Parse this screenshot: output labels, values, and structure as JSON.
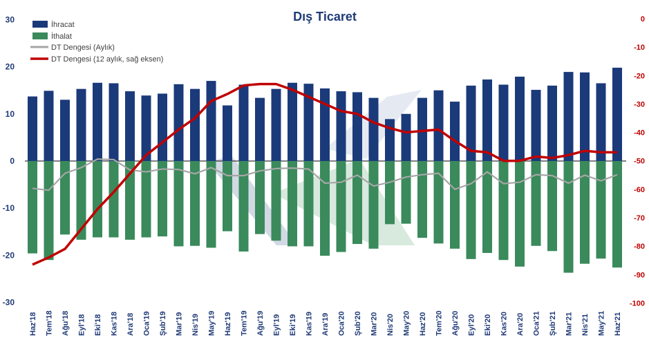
{
  "chart_data": {
    "type": "bar",
    "title": "Dış Ticaret",
    "colors": {
      "export": "#1B3A7A",
      "import": "#3A8A5C",
      "monthly_balance": "#A6A6A6",
      "annual_balance": "#C00000",
      "left_axis": "#1F3A77",
      "right_axis": "#C00000"
    },
    "categories": [
      "Haz'18",
      "Tem'18",
      "Ağu'18",
      "Eyl'18",
      "Eki'18",
      "Kas'18",
      "Ara'18",
      "Oca'19",
      "Şub'19",
      "Mar'19",
      "Nis'19",
      "May'19",
      "Haz'19",
      "Tem'19",
      "Ağu'19",
      "Eyl'19",
      "Eki'19",
      "Kas'19",
      "Ara'19",
      "Oca'20",
      "Şub'20",
      "Mar'20",
      "Nis'20",
      "May'20",
      "Haz'20",
      "Tem'20",
      "Ağu'20",
      "Eyl'20",
      "Eki'20",
      "Kas'20",
      "Ara'20",
      "Oca'21",
      "Şub'21",
      "Mar'21",
      "Nis'21",
      "May'21",
      "Haz'21"
    ],
    "left_axis": {
      "ylim": [
        -30,
        30
      ],
      "ticks": [
        "30",
        "20",
        "10",
        "0",
        "-10",
        "-20",
        "-30"
      ],
      "tick_values": [
        30,
        20,
        10,
        0,
        -10,
        -20,
        -30
      ]
    },
    "right_axis": {
      "ylim": [
        -100,
        0
      ],
      "ticks": [
        "0",
        "-10",
        "-20",
        "-30",
        "-40",
        "-50",
        "-60",
        "-70",
        "-80",
        "-90",
        "-100"
      ],
      "tick_values": [
        0,
        -10,
        -20,
        -30,
        -40,
        -50,
        -60,
        -70,
        -80,
        -90,
        -100
      ]
    },
    "legend": {
      "placement": "top-left"
    },
    "series": [
      {
        "name": "İhracat",
        "kind": "bar",
        "axis": "left",
        "values": [
          13.7,
          14.9,
          13.0,
          15.3,
          16.6,
          16.5,
          14.8,
          13.9,
          14.3,
          16.3,
          15.3,
          17.0,
          11.8,
          16.2,
          13.4,
          15.3,
          16.6,
          16.4,
          15.4,
          14.8,
          14.6,
          13.4,
          8.9,
          10.0,
          13.4,
          15.0,
          12.6,
          16.0,
          17.3,
          16.2,
          17.9,
          15.1,
          16.0,
          18.9,
          18.8,
          16.5,
          19.8
        ]
      },
      {
        "name": "İthalat",
        "kind": "bar",
        "axis": "left",
        "values": [
          -19.6,
          -21.0,
          -15.6,
          -16.7,
          -16.2,
          -16.2,
          -16.7,
          -16.2,
          -16.0,
          -18.1,
          -18.0,
          -18.4,
          -14.9,
          -19.2,
          -15.5,
          -16.9,
          -18.1,
          -18.1,
          -20.1,
          -19.3,
          -17.6,
          -18.6,
          -13.4,
          -13.3,
          -16.3,
          -17.5,
          -18.6,
          -20.8,
          -19.5,
          -21.0,
          -22.4,
          -18.0,
          -19.1,
          -23.7,
          -21.8,
          -20.7,
          -22.6
        ]
      },
      {
        "name": "DT Dengesi (Aylık)",
        "kind": "line",
        "axis": "left",
        "values": [
          -5.8,
          -6.2,
          -2.6,
          -1.4,
          0.4,
          0.3,
          -1.9,
          -2.3,
          -1.7,
          -1.8,
          -2.7,
          -1.4,
          -3.1,
          -3.1,
          -2.1,
          -1.6,
          -1.5,
          -1.7,
          -4.7,
          -4.5,
          -3.0,
          -5.3,
          -4.5,
          -3.4,
          -2.9,
          -2.6,
          -6.0,
          -4.8,
          -2.3,
          -4.8,
          -4.5,
          -2.9,
          -3.1,
          -4.7,
          -3.0,
          -4.2,
          -2.9
        ]
      },
      {
        "name": "DT Dengesi (12 aylık, sağ eksen)",
        "kind": "line",
        "axis": "right",
        "values": [
          -86.5,
          -84.0,
          -81.0,
          -74.0,
          -67.0,
          -61.0,
          -54.5,
          -48.0,
          -43.5,
          -39.0,
          -35.0,
          -29.0,
          -26.5,
          -23.5,
          -23.0,
          -23.0,
          -25.0,
          -27.5,
          -30.0,
          -32.5,
          -33.5,
          -36.5,
          -38.5,
          -40.0,
          -39.5,
          -39.0,
          -43.0,
          -46.5,
          -47.0,
          -50.0,
          -50.0,
          -48.5,
          -49.0,
          -48.0,
          -46.5,
          -47.0,
          -47.0
        ]
      }
    ]
  }
}
